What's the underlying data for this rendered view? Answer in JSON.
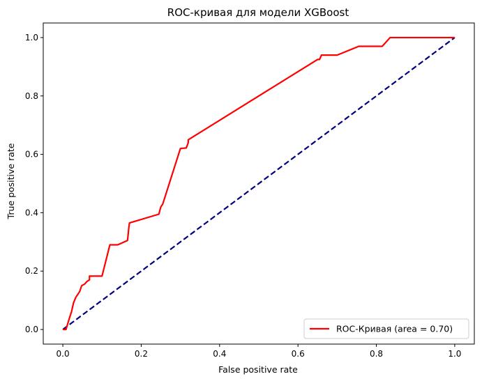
{
  "chart_data": {
    "type": "line",
    "title": "ROC-кривая для модели XGBoost",
    "xlabel": "False positive rate",
    "ylabel": "True positive rate",
    "xlim": [
      -0.05,
      1.05
    ],
    "ylim": [
      -0.05,
      1.05
    ],
    "xticks": [
      0.0,
      0.2,
      0.4,
      0.6,
      0.8,
      1.0
    ],
    "xtick_labels": [
      "0.0",
      "0.2",
      "0.4",
      "0.6",
      "0.8",
      "1.0"
    ],
    "yticks": [
      0.0,
      0.2,
      0.4,
      0.6,
      0.8,
      1.0
    ],
    "ytick_labels": [
      "0.0",
      "0.2",
      "0.4",
      "0.6",
      "0.8",
      "1.0"
    ],
    "grid": false,
    "legend_position": "lower right",
    "series": [
      {
        "name": "ROC-Кривая (area = 0.70)",
        "color": "#ff0000",
        "style": "solid",
        "x": [
          0.0,
          0.008,
          0.017,
          0.022,
          0.027,
          0.033,
          0.038,
          0.043,
          0.048,
          0.055,
          0.062,
          0.068,
          0.068,
          0.1,
          0.12,
          0.14,
          0.165,
          0.167,
          0.168,
          0.17,
          0.245,
          0.25,
          0.255,
          0.3,
          0.315,
          0.32,
          0.32,
          0.65,
          0.655,
          0.66,
          0.7,
          0.755,
          0.815,
          0.835,
          1.0
        ],
        "y": [
          0.0,
          0.0,
          0.04,
          0.06,
          0.09,
          0.11,
          0.12,
          0.13,
          0.15,
          0.155,
          0.165,
          0.17,
          0.183,
          0.183,
          0.29,
          0.29,
          0.305,
          0.33,
          0.345,
          0.365,
          0.395,
          0.42,
          0.43,
          0.62,
          0.622,
          0.64,
          0.65,
          0.925,
          0.925,
          0.94,
          0.94,
          0.97,
          0.97,
          1.0,
          1.0
        ]
      },
      {
        "name": "",
        "color": "#000080",
        "style": "dashed",
        "x": [
          0.0,
          1.0
        ],
        "y": [
          0.0,
          1.0
        ]
      }
    ],
    "legend": [
      {
        "label": "ROC-Кривая (area = 0.70)",
        "color": "#ff0000"
      }
    ]
  }
}
